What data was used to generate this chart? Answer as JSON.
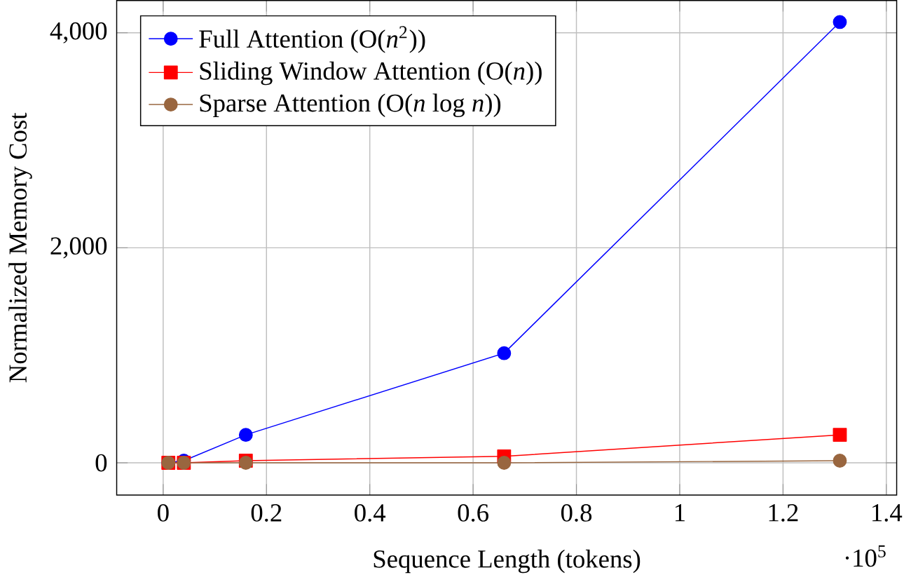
{
  "chart_data": {
    "type": "line",
    "xlabel": "Sequence Length (tokens)",
    "ylabel": "Normalized Memory Cost",
    "x": [
      0.01,
      0.04,
      0.16,
      0.66,
      1.31
    ],
    "series": [
      {
        "name": "Full Attention (O(*n*$^{2}$))",
        "color": "#0000ff",
        "marker": "circle",
        "values": [
          0,
          20,
          260,
          1020,
          4100
        ]
      },
      {
        "name": "Sliding Window Attention (O(*n*))",
        "color": "#ff0000",
        "marker": "square",
        "values": [
          0,
          0,
          20,
          60,
          260
        ]
      },
      {
        "name": "Sparse Attention (O(*n* log *n*))",
        "color": "#99663f",
        "marker": "circle",
        "values": [
          0,
          0,
          0,
          0,
          20
        ]
      }
    ],
    "xlim": [
      -0.09,
      1.42
    ],
    "ylim": [
      -300,
      4300
    ],
    "xticks": [
      0,
      0.2,
      0.4,
      0.6,
      0.8,
      1,
      1.2,
      1.4
    ],
    "yticks": [
      0,
      {
        "value": 2000,
        "label": "2,000"
      },
      {
        "value": 4000,
        "label": "4,000"
      }
    ],
    "annotations": [
      "·10$^{5}$"
    ],
    "grid": true,
    "legend": "top left",
    "line_style": "solid"
  }
}
